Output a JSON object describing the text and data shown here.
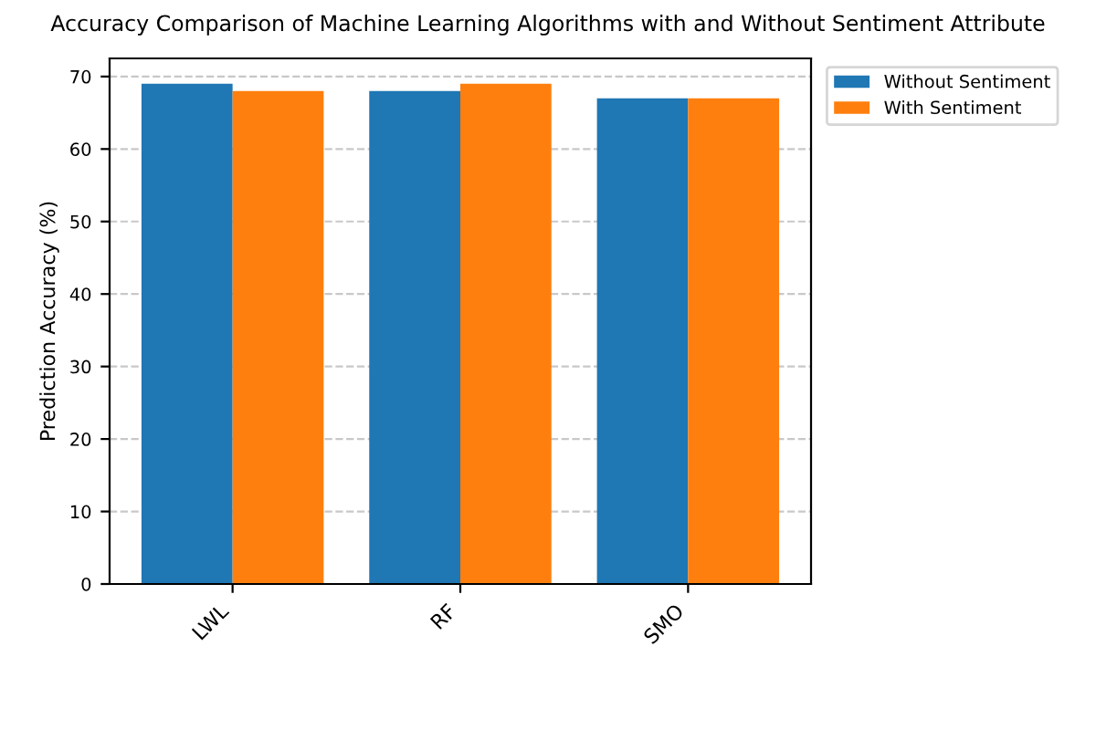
{
  "chart_data": {
    "type": "bar",
    "title": "Accuracy Comparison of Machine Learning Algorithms with and Without Sentiment Attribute",
    "ylabel": "Prediction Accuracy (%)",
    "categories": [
      "LWL",
      "RF",
      "SMO"
    ],
    "series": [
      {
        "name": "Without Sentiment",
        "color": "#1f77b4",
        "values": [
          69,
          68,
          67
        ]
      },
      {
        "name": "With Sentiment",
        "color": "#ff7f0e",
        "values": [
          68,
          69,
          67
        ]
      }
    ],
    "ylim": [
      0,
      72.5
    ],
    "yticks": [
      0,
      10,
      20,
      30,
      40,
      50,
      60,
      70
    ],
    "grid": "y",
    "legend": "top right"
  }
}
